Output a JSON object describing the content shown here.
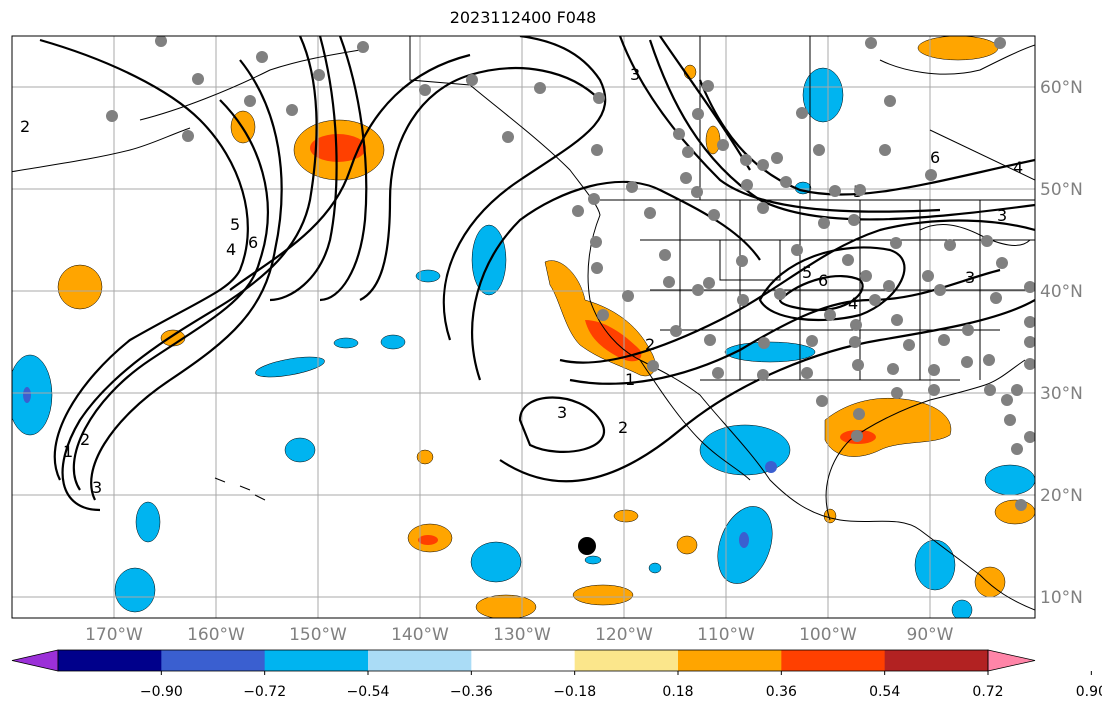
{
  "title": "2023112400 F048",
  "lat_labels": [
    "60°N",
    "50°N",
    "40°N",
    "30°N",
    "20°N",
    "10°N"
  ],
  "lon_labels": [
    "170°W",
    "160°W",
    "150°W",
    "140°W",
    "130°W",
    "120°W",
    "110°W",
    "100°W",
    "90°W"
  ],
  "colorbar": {
    "ticks": [
      "−0.90",
      "−0.72",
      "−0.54",
      "−0.36",
      "−0.18",
      "0.18",
      "0.36",
      "0.54",
      "0.72",
      "0.90"
    ],
    "colors": [
      "#9b30d8",
      "#00008b",
      "#3a5fd0",
      "#00b4f0",
      "#aadcf6",
      "#ffffff",
      "#fbe68b",
      "#ffa500",
      "#ff4000",
      "#b22222",
      "#ff85a8"
    ]
  },
  "contour_labels": [
    "1",
    "2",
    "3",
    "4",
    "5",
    "6"
  ]
}
